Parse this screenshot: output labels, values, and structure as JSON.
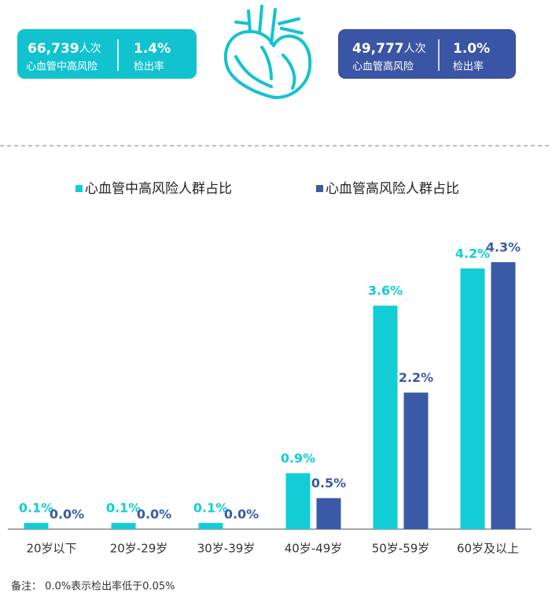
{
  "stats": [
    {
      "number": "66,739",
      "unit": "人次",
      "label": "心血管中高风险",
      "rate": "1.4%",
      "rate_label": "检出率"
    },
    {
      "number": "49,777",
      "unit": "人次",
      "label": "心血管高风险",
      "rate": "1.0%",
      "rate_label": "检出率"
    }
  ],
  "chart_data": {
    "type": "bar",
    "categories": [
      "20岁以下",
      "20岁-29岁",
      "30岁-39岁",
      "40岁-49岁",
      "50岁-59岁",
      "60岁及以上"
    ],
    "series": [
      {
        "name": "心血管中高风险人群占比",
        "color": "#12cdd6",
        "values": [
          0.1,
          0.1,
          0.1,
          0.9,
          3.6,
          4.2
        ],
        "value_labels": [
          "0.1%",
          "0.1%",
          "0.1%",
          "0.9%",
          "3.6%",
          "4.2%"
        ]
      },
      {
        "name": "心血管高风险人群占比",
        "color": "#3a5aa8",
        "values": [
          0.0,
          0.0,
          0.0,
          0.5,
          2.2,
          4.3
        ],
        "value_labels": [
          "0.0%",
          "0.0%",
          "0.0%",
          "0.5%",
          "2.2%",
          "4.3%"
        ]
      }
    ],
    "ylim": [
      0,
      4.3
    ]
  },
  "note": "备注：  0.0%表示检出率低于0.05%"
}
